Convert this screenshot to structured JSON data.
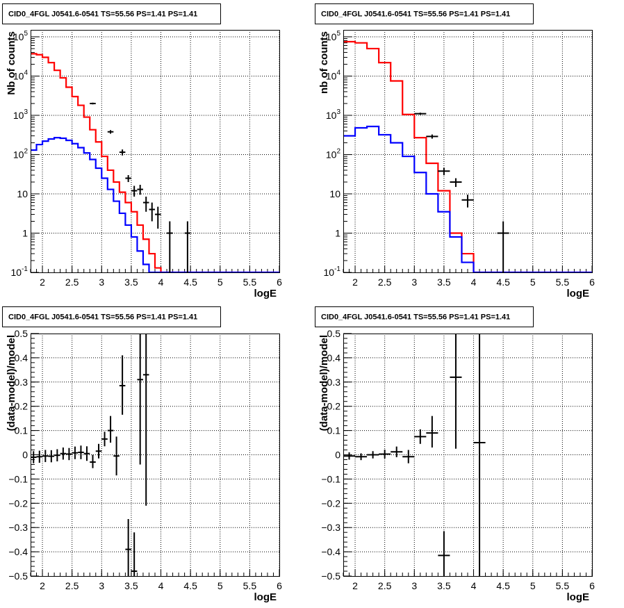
{
  "chart_data": [
    {
      "type": "histogram",
      "title": "CID0_4FGL J0541.6-0541 TS=55.56 PS=1.41 PS=1.41",
      "xlabel": "logE",
      "ylabel": "Nb of counts",
      "xlim": [
        1.8,
        6.0
      ],
      "ylim": [
        0.1,
        150000
      ],
      "yscale": "log",
      "grid": true,
      "bin_width": 0.1,
      "bin_edges_start": 1.8,
      "x_ticks": [
        "2",
        "2.5",
        "3",
        "3.5",
        "4",
        "4.5",
        "5",
        "5.5",
        "6"
      ],
      "y_ticks": [
        "10^-1",
        "1",
        "10",
        "10^2",
        "10^3",
        "10^4",
        "10^5"
      ],
      "series": [
        {
          "color": "#ff0000",
          "values": [
            37000,
            35000,
            30000,
            22000,
            14000,
            9000,
            5200,
            3000,
            1800,
            900,
            430,
            210,
            90,
            40,
            20,
            11,
            6,
            3.5,
            1.6,
            0.7,
            0.3,
            0.13,
            0.1,
            0.1,
            0.1,
            0.1,
            0.1,
            0.1,
            0.1,
            0.1,
            0.1,
            0.1,
            0.1,
            0.1,
            0.1,
            0.1,
            0.1,
            0.1,
            0.1,
            0.1,
            0.1,
            0.1
          ]
        },
        {
          "color": "#0000ff",
          "values": [
            130,
            180,
            220,
            250,
            270,
            260,
            230,
            190,
            150,
            110,
            75,
            45,
            25,
            13,
            6.5,
            3.2,
            1.6,
            0.8,
            0.35,
            0.16,
            0.1,
            0.1,
            0.1,
            0.1,
            0.1,
            0.1,
            0.1,
            0.1,
            0.1,
            0.1,
            0.1,
            0.1,
            0.1,
            0.1,
            0.1,
            0.1,
            0.1,
            0.1,
            0.1,
            0.1,
            0.1,
            0.1
          ]
        }
      ],
      "points": [
        {
          "x": 2.85,
          "y": 2000,
          "lo": 1900,
          "hi": 2100
        },
        {
          "x": 3.15,
          "y": 380,
          "lo": 340,
          "hi": 420
        },
        {
          "x": 3.35,
          "y": 115,
          "lo": 95,
          "hi": 135
        },
        {
          "x": 3.45,
          "y": 25,
          "lo": 20,
          "hi": 30
        },
        {
          "x": 3.55,
          "y": 12,
          "lo": 8.5,
          "hi": 16
        },
        {
          "x": 3.65,
          "y": 13,
          "lo": 9.5,
          "hi": 17
        },
        {
          "x": 3.75,
          "y": 6,
          "lo": 3.5,
          "hi": 8.5
        },
        {
          "x": 3.85,
          "y": 4,
          "lo": 2,
          "hi": 6
        },
        {
          "x": 3.95,
          "y": 3,
          "lo": 1.3,
          "hi": 4.7
        },
        {
          "x": 4.15,
          "y": 1,
          "lo": 0.1,
          "hi": 2
        },
        {
          "x": 4.45,
          "y": 1,
          "lo": 0.1,
          "hi": 2
        }
      ]
    },
    {
      "type": "histogram",
      "title": "CID0_4FGL J0541.6-0541 TS=55.56 PS=1.41 PS=1.41",
      "xlabel": "logE",
      "ylabel": "nb of counts",
      "xlim": [
        1.8,
        6.0
      ],
      "ylim": [
        0.1,
        150000
      ],
      "yscale": "log",
      "grid": true,
      "bin_width": 0.2,
      "bin_edges_start": 1.8,
      "x_ticks": [
        "2",
        "2.5",
        "3",
        "3.5",
        "4",
        "4.5",
        "5",
        "5.5",
        "6"
      ],
      "y_ticks": [
        "10^-1",
        "1",
        "10",
        "10^2",
        "10^3",
        "10^4",
        "10^5"
      ],
      "series": [
        {
          "color": "#ff0000",
          "values": [
            75000,
            70000,
            50000,
            22000,
            7500,
            1050,
            270,
            60,
            12,
            1,
            0.3,
            0.1,
            0.1,
            0.1,
            0.1,
            0.1,
            0.1,
            0.1,
            0.1,
            0.1,
            0.1
          ]
        },
        {
          "color": "#0000ff",
          "values": [
            300,
            480,
            520,
            320,
            200,
            90,
            35,
            10,
            3.5,
            0.8,
            0.18,
            0.1,
            0.1,
            0.1,
            0.1,
            0.1,
            0.1,
            0.1,
            0.1,
            0.1,
            0.1
          ]
        }
      ],
      "points": [
        {
          "x": 3.1,
          "y": 1100,
          "lo": 1030,
          "hi": 1170
        },
        {
          "x": 3.3,
          "y": 290,
          "lo": 255,
          "hi": 325
        },
        {
          "x": 3.5,
          "y": 38,
          "lo": 30,
          "hi": 46
        },
        {
          "x": 3.7,
          "y": 20,
          "lo": 15,
          "hi": 25
        },
        {
          "x": 3.9,
          "y": 7,
          "lo": 4.5,
          "hi": 9.5
        },
        {
          "x": 4.5,
          "y": 1,
          "lo": 0.1,
          "hi": 2
        }
      ]
    },
    {
      "type": "scatter",
      "title": "CID0_4FGL J0541.6-0541 TS=55.56 PS=1.41 PS=1.41",
      "xlabel": "logE",
      "ylabel": "(data-model)/model",
      "xlim": [
        1.8,
        6.0
      ],
      "ylim": [
        -0.5,
        0.5
      ],
      "grid": true,
      "x_ticks": [
        "2",
        "2.5",
        "3",
        "3.5",
        "4",
        "4.5",
        "5",
        "5.5",
        "6"
      ],
      "y_ticks": [
        "-0.5",
        "-0.4",
        "-0.3",
        "-0.2",
        "-0.1",
        "0",
        "0.1",
        "0.2",
        "0.3",
        "0.4",
        "0.5"
      ],
      "xerr": 0.05,
      "points": [
        {
          "x": 1.85,
          "y": -0.01,
          "lo": -0.035,
          "hi": 0.015
        },
        {
          "x": 1.95,
          "y": -0.008,
          "lo": -0.033,
          "hi": 0.017
        },
        {
          "x": 2.05,
          "y": -0.005,
          "lo": -0.03,
          "hi": 0.02
        },
        {
          "x": 2.15,
          "y": -0.006,
          "lo": -0.031,
          "hi": 0.019
        },
        {
          "x": 2.25,
          "y": -0.002,
          "lo": -0.027,
          "hi": 0.023
        },
        {
          "x": 2.35,
          "y": 0.005,
          "lo": -0.02,
          "hi": 0.03
        },
        {
          "x": 2.45,
          "y": 0.003,
          "lo": -0.022,
          "hi": 0.028
        },
        {
          "x": 2.55,
          "y": 0.008,
          "lo": -0.018,
          "hi": 0.034
        },
        {
          "x": 2.65,
          "y": 0.01,
          "lo": -0.018,
          "hi": 0.038
        },
        {
          "x": 2.75,
          "y": 0.005,
          "lo": -0.025,
          "hi": 0.035
        },
        {
          "x": 2.85,
          "y": -0.03,
          "lo": -0.055,
          "hi": 0.0
        },
        {
          "x": 2.95,
          "y": 0.015,
          "lo": -0.015,
          "hi": 0.045
        },
        {
          "x": 3.05,
          "y": 0.065,
          "lo": 0.035,
          "hi": 0.095
        },
        {
          "x": 3.15,
          "y": 0.1,
          "lo": 0.05,
          "hi": 0.16
        },
        {
          "x": 3.25,
          "y": -0.005,
          "lo": -0.085,
          "hi": 0.075
        },
        {
          "x": 3.35,
          "y": 0.285,
          "lo": 0.165,
          "hi": 0.41
        },
        {
          "x": 3.45,
          "y": -0.39,
          "lo": -0.5,
          "hi": -0.265
        },
        {
          "x": 3.55,
          "y": -0.48,
          "lo": -0.5,
          "hi": -0.32
        },
        {
          "x": 3.65,
          "y": 0.31,
          "lo": -0.04,
          "hi": 0.5
        },
        {
          "x": 3.75,
          "y": 0.33,
          "lo": -0.21,
          "hi": 0.5
        }
      ]
    },
    {
      "type": "scatter",
      "title": "CID0_4FGL J0541.6-0541 TS=55.56 PS=1.41 PS=1.41",
      "xlabel": "logE",
      "ylabel": "(data-model)/model",
      "xlim": [
        1.8,
        6.0
      ],
      "ylim": [
        -0.5,
        0.5
      ],
      "grid": true,
      "x_ticks": [
        "2",
        "2.5",
        "3",
        "3.5",
        "4",
        "4.5",
        "5",
        "5.5",
        "6"
      ],
      "y_ticks": [
        "-0.5",
        "-0.4",
        "-0.3",
        "-0.2",
        "-0.1",
        "0",
        "0.1",
        "0.2",
        "0.3",
        "0.4",
        "0.5"
      ],
      "xerr": 0.1,
      "points": [
        {
          "x": 1.9,
          "y": -0.005,
          "lo": -0.02,
          "hi": 0.01
        },
        {
          "x": 2.1,
          "y": -0.008,
          "lo": -0.022,
          "hi": 0.006
        },
        {
          "x": 2.3,
          "y": 0.0,
          "lo": -0.015,
          "hi": 0.015
        },
        {
          "x": 2.5,
          "y": 0.003,
          "lo": -0.015,
          "hi": 0.021
        },
        {
          "x": 2.7,
          "y": 0.012,
          "lo": -0.01,
          "hi": 0.034
        },
        {
          "x": 2.9,
          "y": -0.008,
          "lo": -0.035,
          "hi": 0.02
        },
        {
          "x": 3.1,
          "y": 0.075,
          "lo": 0.045,
          "hi": 0.105
        },
        {
          "x": 3.3,
          "y": 0.09,
          "lo": 0.03,
          "hi": 0.16
        },
        {
          "x": 3.5,
          "y": -0.415,
          "lo": -0.5,
          "hi": -0.315
        },
        {
          "x": 3.7,
          "y": 0.32,
          "lo": 0.025,
          "hi": 0.5
        },
        {
          "x": 4.1,
          "y": 0.05,
          "lo": -0.5,
          "hi": 0.5
        }
      ]
    }
  ]
}
